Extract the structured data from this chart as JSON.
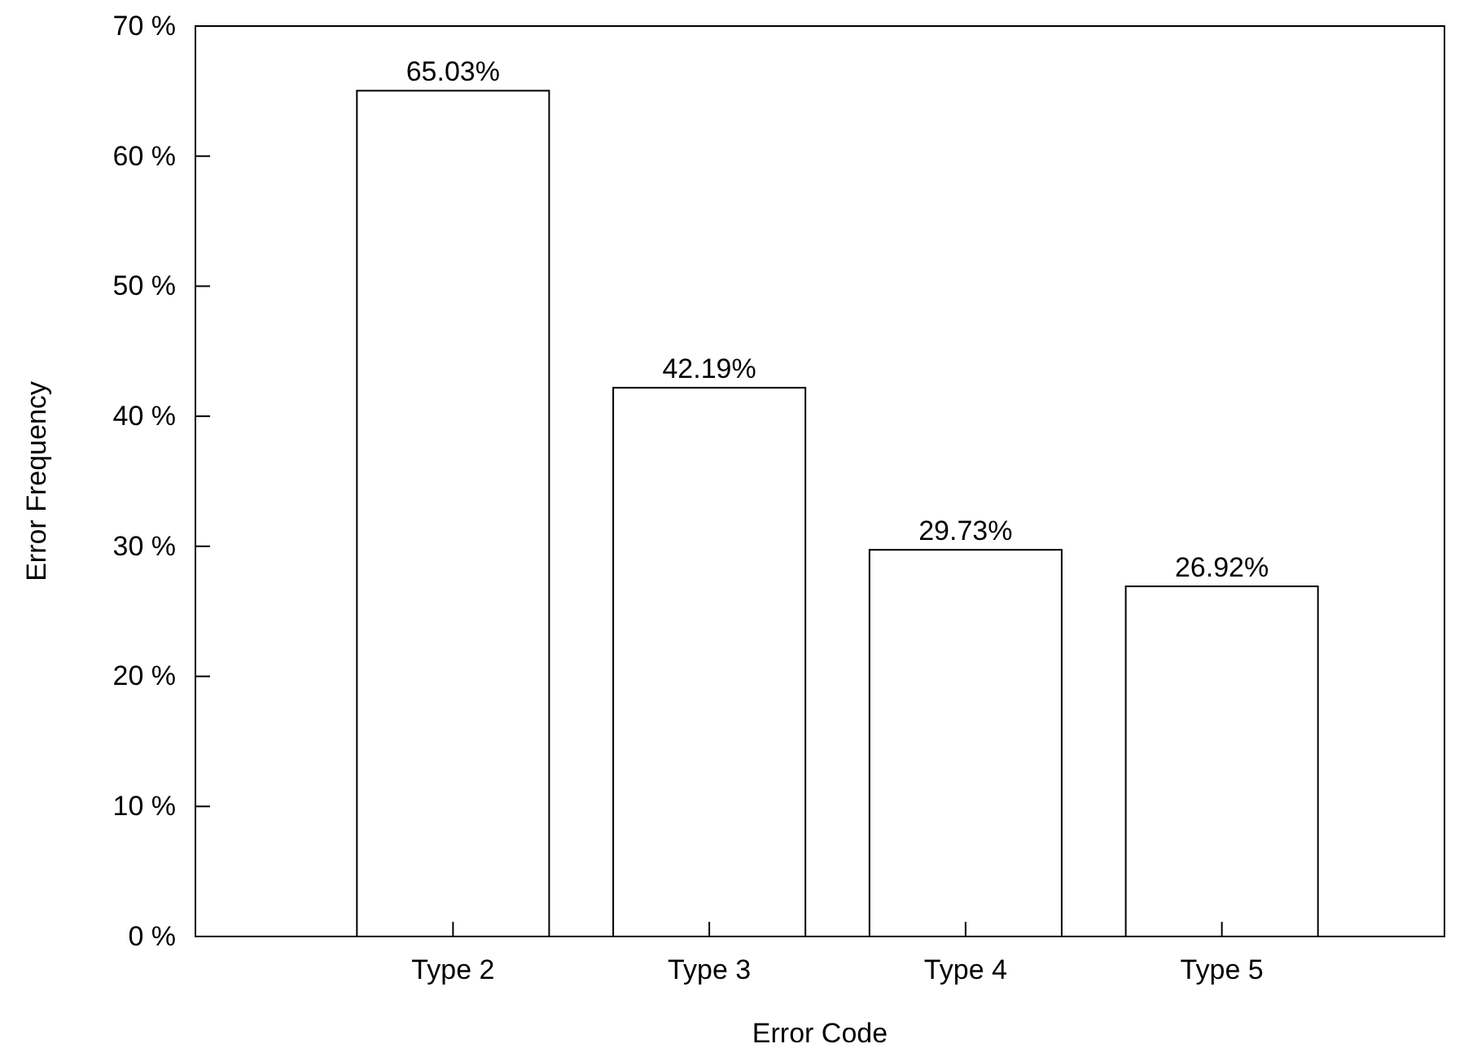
{
  "chart_data": {
    "type": "bar",
    "xlabel": "Error Code",
    "ylabel": "Error Frequency",
    "categories": [
      "Type 2",
      "Type 3",
      "Type 4",
      "Type 5"
    ],
    "values": [
      65.03,
      42.19,
      29.73,
      26.92
    ],
    "value_labels": [
      "65.03%",
      "42.19%",
      "29.73%",
      "26.92%"
    ],
    "color": "#ffffff",
    "ylim": [
      0,
      70
    ],
    "yticks": [
      {
        "value": 0,
        "label": "0 %"
      },
      {
        "value": 10,
        "label": "10 %"
      },
      {
        "value": 20,
        "label": "20 %"
      },
      {
        "value": 30,
        "label": "30 %"
      },
      {
        "value": 40,
        "label": "40 %"
      },
      {
        "value": 50,
        "label": "50 %"
      },
      {
        "value": 60,
        "label": "60 %"
      },
      {
        "value": 70,
        "label": "70 %"
      }
    ],
    "grid": false
  }
}
